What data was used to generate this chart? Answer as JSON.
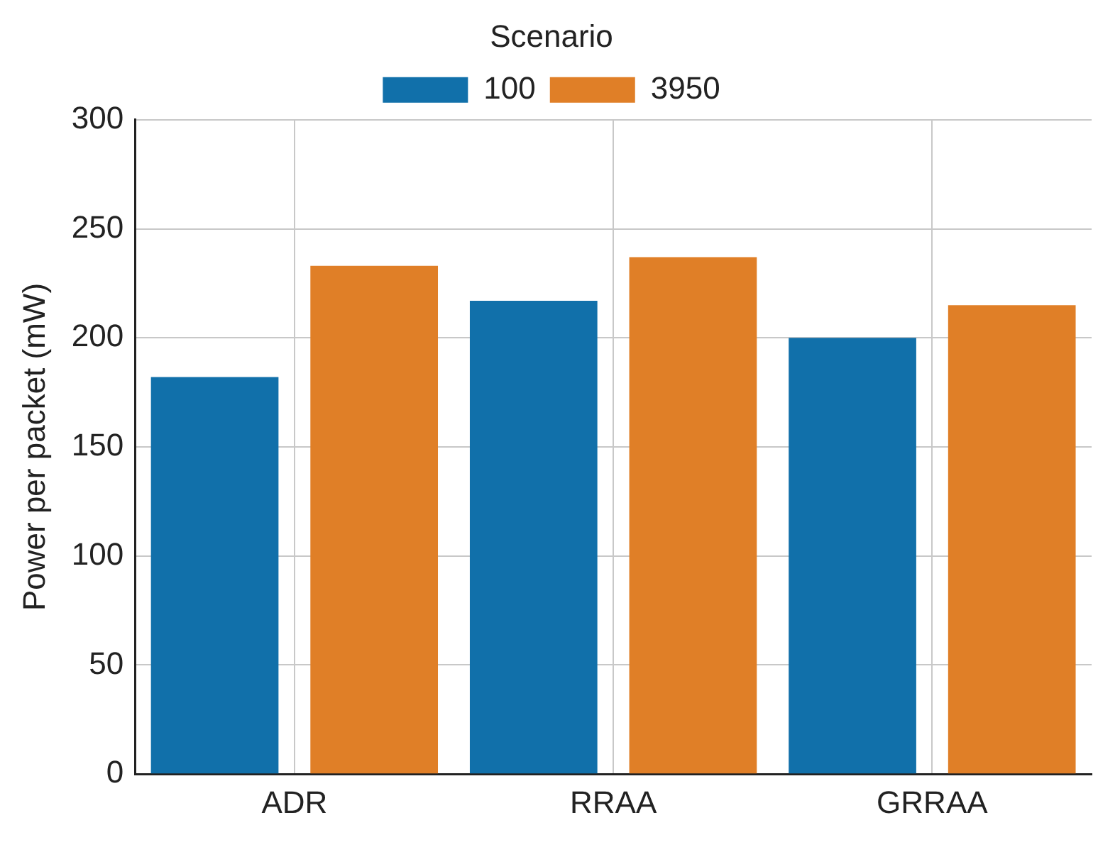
{
  "chart_data": {
    "type": "bar",
    "ylabel": "Power per packet (mW)",
    "legend_title": "Scenario",
    "categories": [
      "ADR",
      "RRAA",
      "GRRAA"
    ],
    "series": [
      {
        "name": "100",
        "color": "#1170aa",
        "values": [
          182,
          217,
          200
        ]
      },
      {
        "name": "3950",
        "color": "#e07f27",
        "values": [
          233,
          237,
          215
        ]
      }
    ],
    "ylim": [
      0,
      300
    ],
    "yticks": [
      0,
      50,
      100,
      150,
      200,
      250,
      300
    ],
    "grid": true,
    "legend": "top"
  }
}
